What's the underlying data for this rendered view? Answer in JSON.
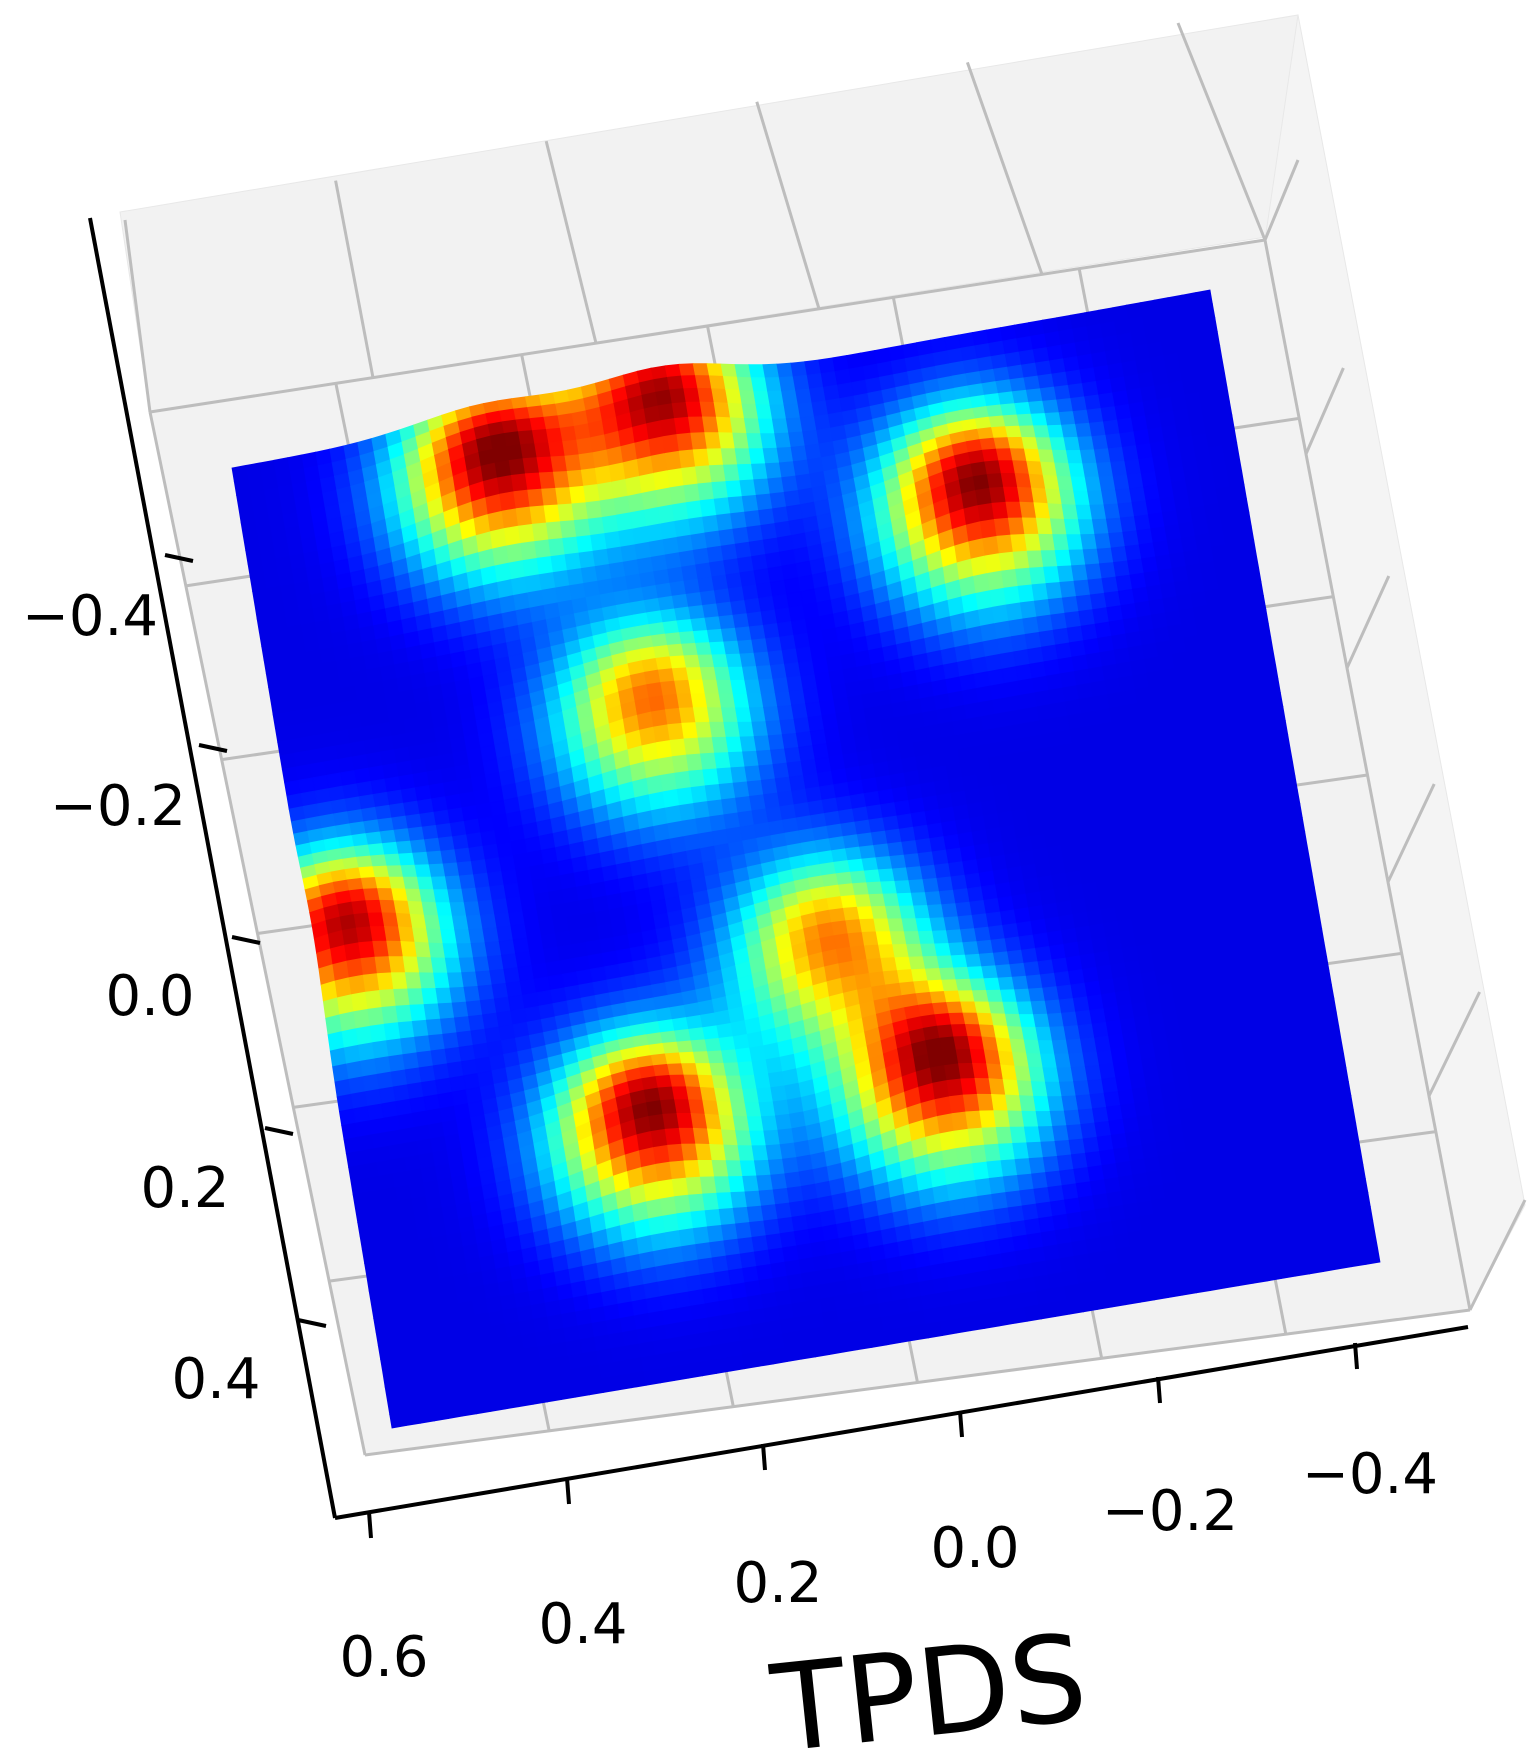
{
  "chart_data": {
    "type": "surface-3d",
    "title": "",
    "xlabel": "TPDS",
    "ylabel": "",
    "zlabel": "",
    "colormap": "jet",
    "x_ticks": [
      "0.6",
      "0.4",
      "0.2",
      "0.0",
      "−0.2",
      "−0.4"
    ],
    "y_ticks": [
      "−0.4",
      "−0.2",
      "0.0",
      "0.2",
      "0.4"
    ],
    "xlim": [
      -0.5,
      0.62
    ],
    "ylim": [
      -0.62,
      0.5
    ],
    "grid": true,
    "peaks": [
      {
        "x": 0.33,
        "y": -0.55,
        "height": 1.0
      },
      {
        "x": 0.13,
        "y": -0.58,
        "height": 0.95
      },
      {
        "x": -0.2,
        "y": -0.42,
        "height": 1.0
      },
      {
        "x": 0.58,
        "y": -0.05,
        "height": 0.95
      },
      {
        "x": 0.28,
        "y": 0.22,
        "height": 1.0
      },
      {
        "x": -0.05,
        "y": 0.22,
        "height": 1.0
      },
      {
        "x": 0.05,
        "y": 0.05,
        "height": 0.7
      },
      {
        "x": 0.2,
        "y": -0.25,
        "height": 0.75
      }
    ]
  }
}
